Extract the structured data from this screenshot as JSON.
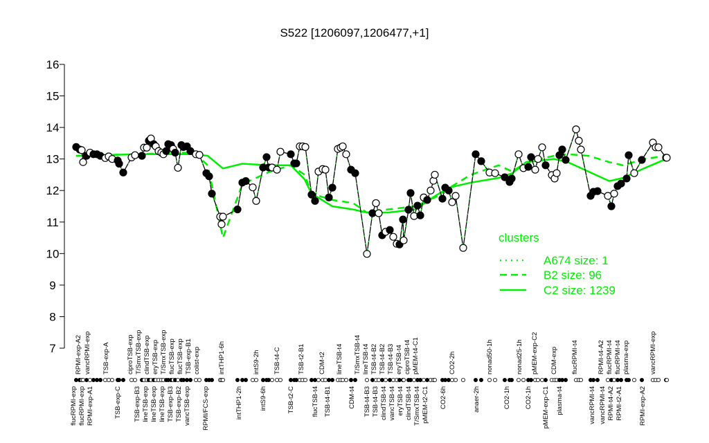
{
  "chart_data": {
    "type": "line",
    "title": "S522 [1206097,1206477,+1]",
    "xlabel": "",
    "ylabel": "",
    "ylim": [
      7,
      16
    ],
    "yticks": [
      "7",
      "8",
      "9",
      "10",
      "11",
      "12",
      "13",
      "14",
      "15",
      "16"
    ],
    "grid": false,
    "legend": {
      "title": "clusters",
      "placement": "right",
      "entries": [
        {
          "label": "A674 size: 1",
          "style": "dotted"
        },
        {
          "label": "B2 size: 96",
          "style": "dashed"
        },
        {
          "label": "C2 size: 1239",
          "style": "solid"
        }
      ],
      "color": "#00ee00"
    },
    "points": {
      "values": [
        13.38,
        13.3,
        13.28,
        12.9,
        13.1,
        13.2,
        13.15,
        13.15,
        13.1,
        13.03,
        13.08,
        13.0,
        12.95,
        12.85,
        12.57,
        13.05,
        13.12,
        13.1,
        13.36,
        13.36,
        13.58,
        13.65,
        13.47,
        13.4,
        13.25,
        13.2,
        13.15,
        13.25,
        13.47,
        13.44,
        13.32,
        13.2,
        12.72,
        13.44,
        13.38,
        13.4,
        13.25,
        13.15,
        13.13,
        12.55,
        12.45,
        11.9,
        11.17,
        10.93,
        11.17,
        11.4,
        12.25,
        12.3,
        12.1,
        11.67,
        12.73,
        13.06,
        12.73,
        12.73,
        12.66,
        13.23,
        13.15,
        12.86,
        12.86,
        13.4,
        13.4,
        13.38,
        11.87,
        11.67,
        12.6,
        12.68,
        12.66,
        11.78,
        12.09,
        13.32,
        13.36,
        13.4,
        13.15,
        12.66,
        12.55,
        9.99,
        11.28,
        11.6,
        11.28,
        10.58,
        10.69,
        10.75,
        10.53,
        10.31,
        10.29,
        11.08,
        10.42,
        11.39,
        11.92,
        11.19,
        11.52,
        11.21,
        11.78,
        11.7,
        12.0,
        12.31,
        12.5,
        11.74,
        12.09,
        12.0,
        11.63,
        11.83,
        10.18,
        13.15,
        12.93,
        12.57,
        12.55,
        12.42,
        12.27,
        12.38,
        13.15,
        12.71,
        12.75,
        13.06,
        12.66,
        13.0,
        13.37,
        12.8,
        12.49,
        12.38,
        12.55,
        13.12,
        13.3,
        12.97,
        13.94,
        13.58,
        13.3,
        11.83,
        11.96,
        11.98,
        11.83,
        11.5,
        11.9,
        12.14,
        12.22,
        12.38,
        13.12,
        12.55,
        12.97,
        13.52,
        13.37,
        13.37,
        13.04,
        13.04
      ],
      "filled": [
        1,
        1,
        0,
        0,
        1,
        0,
        1,
        1,
        1,
        0,
        0,
        0,
        1,
        1,
        1,
        0,
        0,
        1,
        0,
        0,
        1,
        0,
        1,
        0,
        0,
        0,
        0,
        1,
        1,
        1,
        0,
        1,
        0,
        1,
        1,
        1,
        1,
        0,
        0,
        1,
        1,
        1,
        0,
        0,
        0,
        1,
        1,
        1,
        0,
        0,
        1,
        1,
        1,
        0,
        0,
        0,
        1,
        1,
        1,
        0,
        0,
        0,
        1,
        1,
        0,
        0,
        0,
        1,
        1,
        0,
        0,
        0,
        0,
        1,
        1,
        0,
        1,
        0,
        0,
        1,
        0,
        1,
        0,
        0,
        1,
        1,
        0,
        1,
        1,
        0,
        1,
        1,
        0,
        1,
        0,
        0,
        0,
        1,
        1,
        1,
        0,
        0,
        0,
        1,
        1,
        0,
        0,
        1,
        1,
        1,
        0,
        0,
        1,
        1,
        0,
        0,
        0,
        1,
        0,
        0,
        0,
        1,
        1,
        1,
        0,
        0,
        0,
        1,
        1,
        1,
        0,
        1,
        0,
        1,
        1,
        1,
        1,
        0,
        1,
        0,
        0,
        0,
        1,
        0
      ]
    },
    "series": [
      {
        "name": "B2 size: 96",
        "style": "dashed",
        "values": [
          13.1,
          13.15,
          13.2,
          13.2,
          12.8,
          10.5,
          12.2,
          12.6,
          12.8,
          12.5,
          11.9,
          11.7,
          11.6,
          11.3,
          11.4,
          11.5,
          11.8,
          12.1,
          12.5,
          12.8,
          12.6,
          12.9,
          13.1,
          13.15,
          13.1,
          12.9,
          12.8,
          13.0,
          13.1
        ]
      },
      {
        "name": "C2 size: 1239",
        "style": "solid",
        "values": [
          13.1,
          13.15,
          13.15,
          13.15,
          13.1,
          12.7,
          12.85,
          12.8,
          12.8,
          12.35,
          11.9,
          11.5,
          11.4,
          11.3,
          11.3,
          11.4,
          11.85,
          12.1,
          12.25,
          12.4,
          12.55,
          12.9,
          13.0,
          12.9,
          12.6,
          12.3,
          12.4,
          12.7,
          13.0
        ]
      }
    ],
    "x_labels_top": [
      "RPMI-exp-A2",
      "vancRPMI-exp",
      "TSB-exp-A",
      "ciproTSB-exp",
      "T/SmxTSB-exp",
      "clindTSB-exp",
      "eryTSB-exp",
      "T/SmxTSB-exp",
      "flucTSB-exp",
      "flucTSB-exp",
      "TSB-exp-B1",
      "colist-exp",
      "intTHP1-6h",
      "intS9-2h",
      "TSB-t4-C",
      "TSB-t2-B1",
      "CDM-t2",
      "lineTSB-t4",
      "T/SmxTSB-t4",
      "lineTSB-t4",
      "TSB-t4-B2",
      "TSB-t4-B2",
      "TSB-t4-B3",
      "eryTSB-t4",
      "ciproTSB-t4",
      "pMEM-t4-C1",
      "CO2-2h",
      "nonad50-1h",
      "nonad25-1h",
      "pMEM-exp-C2",
      "CDM-exp",
      "flucRPMI-t4",
      "RPMI-t4-A2",
      "flucRPMI-t4",
      "flucRPMI-t4",
      "plasma-exp",
      "vancRPMI-exp"
    ],
    "x_labels_bottom": [
      "flucRPMI-exp",
      "flucRPMI-exp",
      "RPMI-exp-A1",
      "TSB-exp-C",
      "TSB-exp-B3",
      "lineTSB-exp",
      "lineTSB-exp",
      "lineTSB-exp",
      "TSB-exp-B3",
      "TSB-exp-B2",
      "vancTSB-exp",
      "RPMI/FCS-exp",
      "intTHP1-2h",
      "intS9-6h",
      "TSB-t2-C",
      "flucTSB-t4",
      "TSB-t4-B1",
      "CDM-t4",
      "TSB-t4-B3",
      "TSB-t4-B3",
      "clindTSB-t4",
      "vancTSB-t4",
      "eryTSB-t4",
      "clindTSB-t4",
      "T/SmxTSB-t4",
      "pMEM-t2-C1",
      "CO2-6h",
      "anaer-2h",
      "CO2-1h",
      "CO2-1h",
      "pMEM-exp-C1",
      "plasma-t4",
      "vancRPMI-t4",
      "vancRPMI-t4",
      "RPMI-t4-A2",
      "RPMI-t2-A1",
      "RPMI-exp-A2"
    ]
  }
}
